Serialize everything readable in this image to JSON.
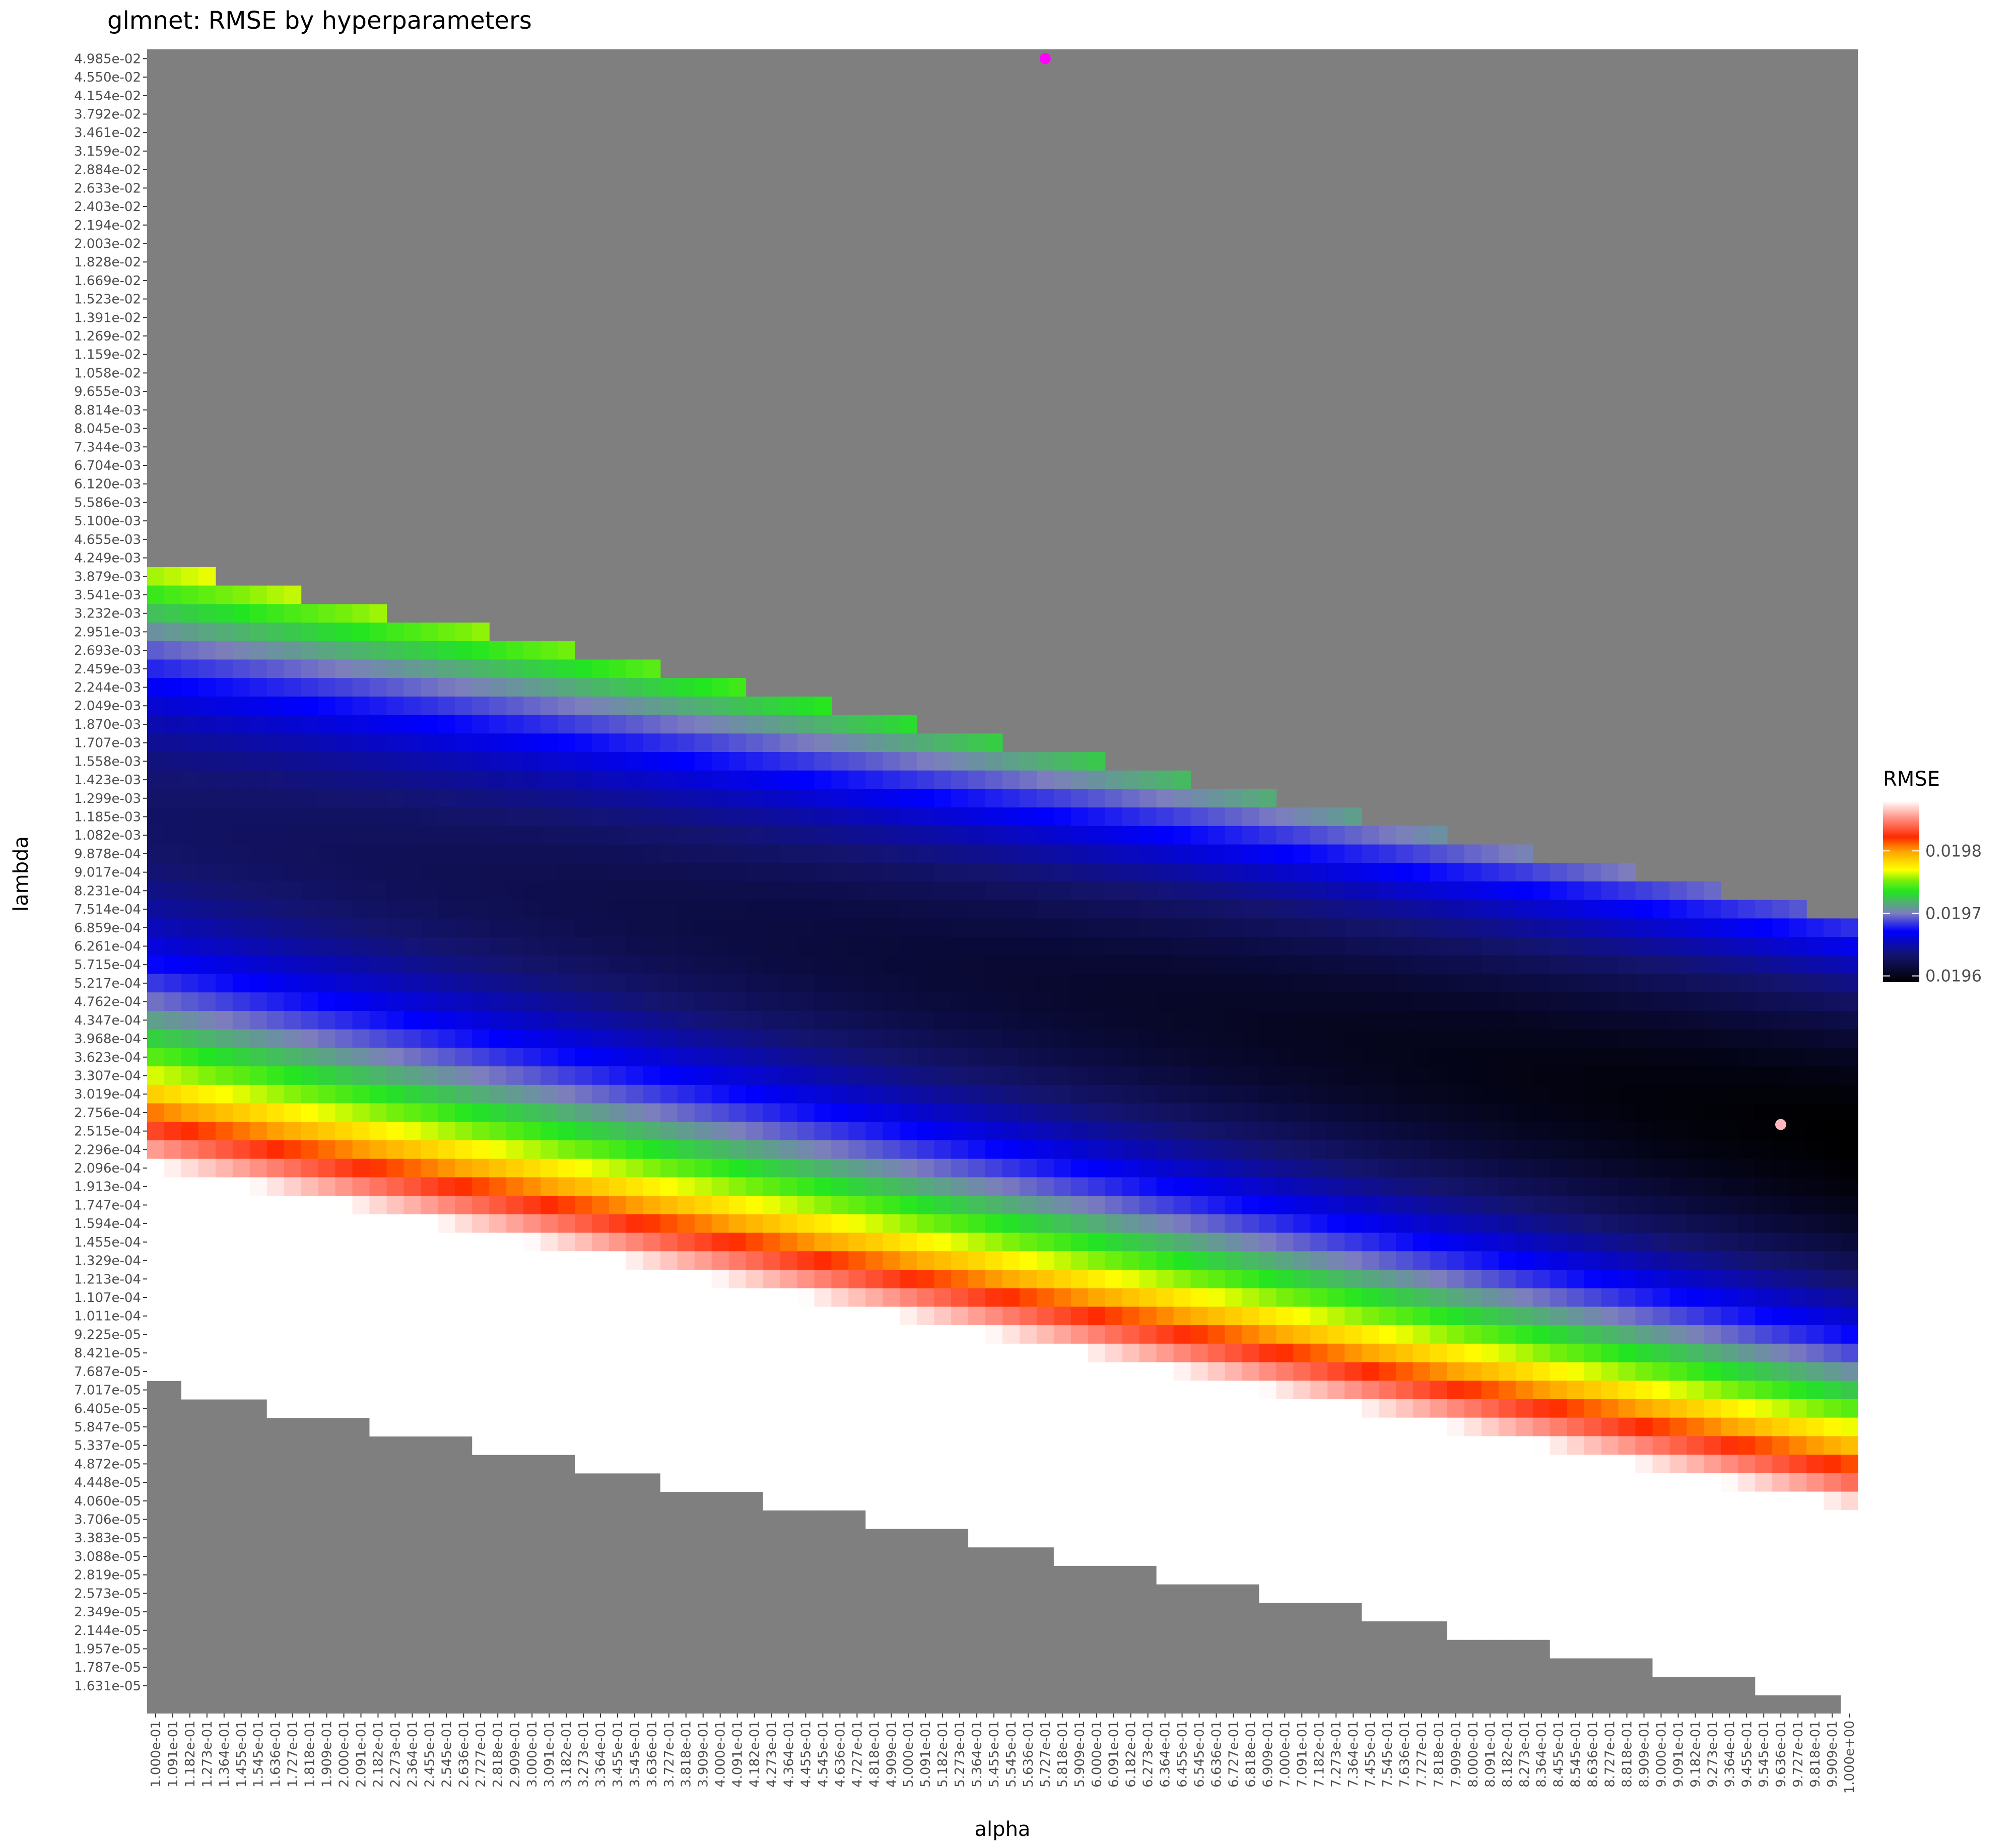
{
  "chart_data": {
    "type": "heatmap",
    "title": "glmnet: RMSE by hyperparameters",
    "xlabel": "alpha",
    "ylabel": "lambda",
    "x_range": [
      0.1,
      1.0
    ],
    "x_steps": 100,
    "x_scale": "linear",
    "y_range": [
      1.631e-05,
      0.04985
    ],
    "y_steps": 90,
    "y_scale": "log",
    "grid": false,
    "legend": {
      "title": "RMSE",
      "position": "right",
      "breaks": [
        0.0196,
        0.0197,
        0.0198
      ],
      "break_labels": [
        "0.0196",
        "0.0197",
        "0.0198"
      ],
      "range": [
        0.01959,
        0.01988
      ],
      "colors": [
        "#000000",
        "#14146e",
        "#0000ff",
        "#7d7dbe",
        "#21e521",
        "#78f00a",
        "#ffff00",
        "#ffa500",
        "#ff2a00",
        "#ff8c7f",
        "#ffffff"
      ],
      "color_positions": [
        0.0,
        0.15,
        0.28,
        0.38,
        0.5,
        0.56,
        0.62,
        0.72,
        0.8,
        0.9,
        1.0
      ]
    },
    "na_color": "#7f7f7f",
    "min_point": {
      "alpha": 0.9636,
      "lambda": 0.0002756,
      "rmse": 0.01959,
      "color": "#ffb6c1"
    },
    "extra_point": {
      "alpha": 0.5727,
      "lambda": 0.04985,
      "color": "#ff00ff"
    },
    "surface_model": {
      "valley_lambda_at_alpha_min": 0.0012,
      "valley_lambda_at_alpha_max": 0.00026,
      "valley_depth_at_alpha_min": 0.01963,
      "valley_depth_at_alpha_max": 0.01959,
      "rmse_curvature_per_log10_squared": 0.00047,
      "upper_limit_lambda_at_alpha_min": 0.004249,
      "upper_limit_lambda_at_alpha_max": 0.0007514,
      "lower_limit_lambda_at_alpha_min": 7.687e-05,
      "lower_limit_lambda_at_alpha_max": 1.631e-05
    },
    "x_tick_labels": [
      "1.000e-01",
      "1.091e-01",
      "1.182e-01",
      "1.273e-01",
      "1.364e-01",
      "1.455e-01",
      "1.545e-01",
      "1.636e-01",
      "1.727e-01",
      "1.818e-01",
      "1.909e-01",
      "2.000e-01",
      "2.091e-01",
      "2.182e-01",
      "2.273e-01",
      "2.364e-01",
      "2.455e-01",
      "2.545e-01",
      "2.636e-01",
      "2.727e-01",
      "2.818e-01",
      "2.909e-01",
      "3.000e-01",
      "3.091e-01",
      "3.182e-01",
      "3.273e-01",
      "3.364e-01",
      "3.455e-01",
      "3.545e-01",
      "3.636e-01",
      "3.727e-01",
      "3.818e-01",
      "3.909e-01",
      "4.000e-01",
      "4.091e-01",
      "4.182e-01",
      "4.273e-01",
      "4.364e-01",
      "4.455e-01",
      "4.545e-01",
      "4.636e-01",
      "4.727e-01",
      "4.818e-01",
      "4.909e-01",
      "5.000e-01",
      "5.091e-01",
      "5.182e-01",
      "5.273e-01",
      "5.364e-01",
      "5.455e-01",
      "5.545e-01",
      "5.636e-01",
      "5.727e-01",
      "5.818e-01",
      "5.909e-01",
      "6.000e-01",
      "6.091e-01",
      "6.182e-01",
      "6.273e-01",
      "6.364e-01",
      "6.455e-01",
      "6.545e-01",
      "6.636e-01",
      "6.727e-01",
      "6.818e-01",
      "6.909e-01",
      "7.000e-01",
      "7.091e-01",
      "7.182e-01",
      "7.273e-01",
      "7.364e-01",
      "7.455e-01",
      "7.545e-01",
      "7.636e-01",
      "7.727e-01",
      "7.818e-01",
      "7.909e-01",
      "8.000e-01",
      "8.091e-01",
      "8.182e-01",
      "8.273e-01",
      "8.364e-01",
      "8.455e-01",
      "8.545e-01",
      "8.636e-01",
      "8.727e-01",
      "8.818e-01",
      "8.909e-01",
      "9.000e-01",
      "9.091e-01",
      "9.182e-01",
      "9.273e-01",
      "9.364e-01",
      "9.455e-01",
      "9.545e-01",
      "9.636e-01",
      "9.727e-01",
      "9.818e-01",
      "9.909e-01",
      "1.000e+00"
    ],
    "y_tick_labels": [
      "4.985e-02",
      "4.550e-02",
      "4.154e-02",
      "3.792e-02",
      "3.461e-02",
      "3.159e-02",
      "2.884e-02",
      "2.633e-02",
      "2.403e-02",
      "2.194e-02",
      "2.003e-02",
      "1.828e-02",
      "1.669e-02",
      "1.523e-02",
      "1.391e-02",
      "1.269e-02",
      "1.159e-02",
      "1.058e-02",
      "9.655e-03",
      "8.814e-03",
      "8.045e-03",
      "7.344e-03",
      "6.704e-03",
      "6.120e-03",
      "5.586e-03",
      "5.100e-03",
      "4.655e-03",
      "4.249e-03",
      "3.879e-03",
      "3.541e-03",
      "3.232e-03",
      "2.951e-03",
      "2.693e-03",
      "2.459e-03",
      "2.244e-03",
      "2.049e-03",
      "1.870e-03",
      "1.707e-03",
      "1.558e-03",
      "1.423e-03",
      "1.299e-03",
      "1.185e-03",
      "1.082e-03",
      "9.878e-04",
      "9.017e-04",
      "8.231e-04",
      "7.514e-04",
      "6.859e-04",
      "6.261e-04",
      "5.715e-04",
      "5.217e-04",
      "4.762e-04",
      "4.347e-04",
      "3.968e-04",
      "3.623e-04",
      "3.307e-04",
      "3.019e-04",
      "2.756e-04",
      "2.515e-04",
      "2.296e-04",
      "2.096e-04",
      "1.913e-04",
      "1.747e-04",
      "1.594e-04",
      "1.455e-04",
      "1.329e-04",
      "1.213e-04",
      "1.107e-04",
      "1.011e-04",
      "9.225e-05",
      "8.421e-05",
      "7.687e-05",
      "7.017e-05",
      "6.405e-05",
      "5.847e-05",
      "5.337e-05",
      "4.872e-05",
      "4.448e-05",
      "4.060e-05",
      "3.706e-05",
      "3.383e-05",
      "3.088e-05",
      "2.819e-05",
      "2.573e-05",
      "2.349e-05",
      "2.144e-05",
      "1.957e-05",
      "1.787e-05",
      "1.631e-05"
    ]
  }
}
